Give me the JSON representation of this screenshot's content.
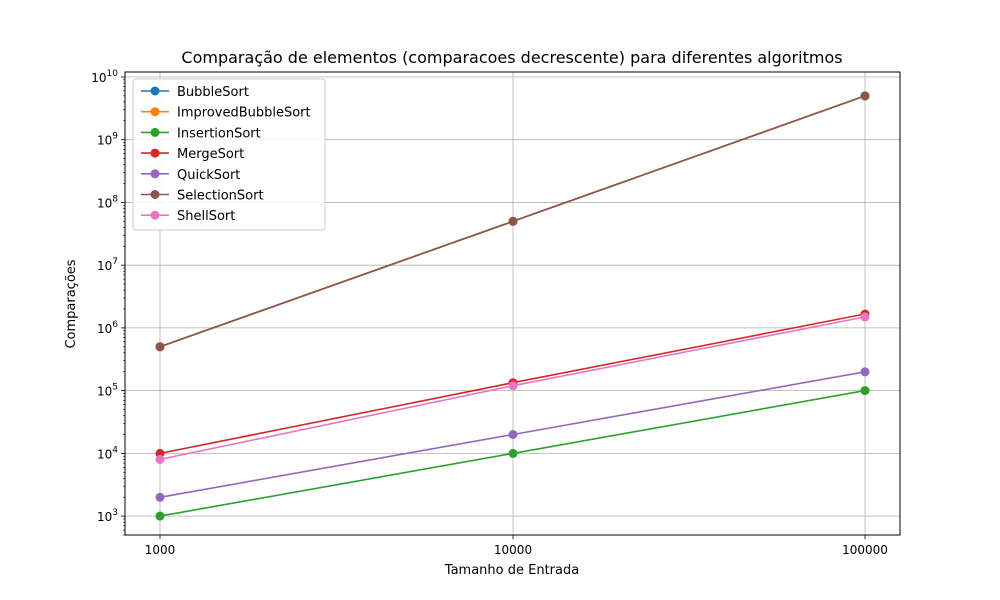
{
  "chart_data": {
    "type": "line",
    "title": "Comparação de elementos (comparacoes decrescente) para diferentes algoritmos",
    "xlabel": "Tamanho de Entrada",
    "ylabel": "Comparações",
    "x_scale": "log",
    "y_scale": "log",
    "x": [
      1000,
      10000,
      100000
    ],
    "x_tick_labels": [
      "1000",
      "10000",
      "100000"
    ],
    "y_ticks": [
      1000,
      10000,
      100000,
      1000000,
      10000000,
      100000000,
      1000000000,
      10000000000
    ],
    "y_tick_labels": [
      {
        "base": "10",
        "exp": "3"
      },
      {
        "base": "10",
        "exp": "4"
      },
      {
        "base": "10",
        "exp": "5"
      },
      {
        "base": "10",
        "exp": "6"
      },
      {
        "base": "10",
        "exp": "7"
      },
      {
        "base": "10",
        "exp": "8"
      },
      {
        "base": "10",
        "exp": "9"
      },
      {
        "base": "10",
        "exp": "10"
      }
    ],
    "ylim": [
      500,
      12000000000
    ],
    "grid": true,
    "legend_position": "top-left",
    "series": [
      {
        "name": "BubbleSort",
        "color": "#1f77b4",
        "values": [
          499500,
          49995000,
          4999950000
        ]
      },
      {
        "name": "ImprovedBubbleSort",
        "color": "#ff7f0e",
        "values": [
          499500,
          49995000,
          4999950000
        ]
      },
      {
        "name": "InsertionSort",
        "color": "#2ca02c",
        "values": [
          999,
          9999,
          99999
        ]
      },
      {
        "name": "MergeSort",
        "color": "#d62728",
        "values": [
          9976,
          133616,
          1668928
        ]
      },
      {
        "name": "QuickSort",
        "color": "#9467bd",
        "values": [
          1998,
          19998,
          199998
        ]
      },
      {
        "name": "SelectionSort",
        "color": "#8c564b",
        "values": [
          499500,
          49995000,
          4999950000
        ]
      },
      {
        "name": "ShellSort",
        "color": "#e377c2",
        "values": [
          8006,
          120005,
          1500006
        ]
      }
    ]
  }
}
